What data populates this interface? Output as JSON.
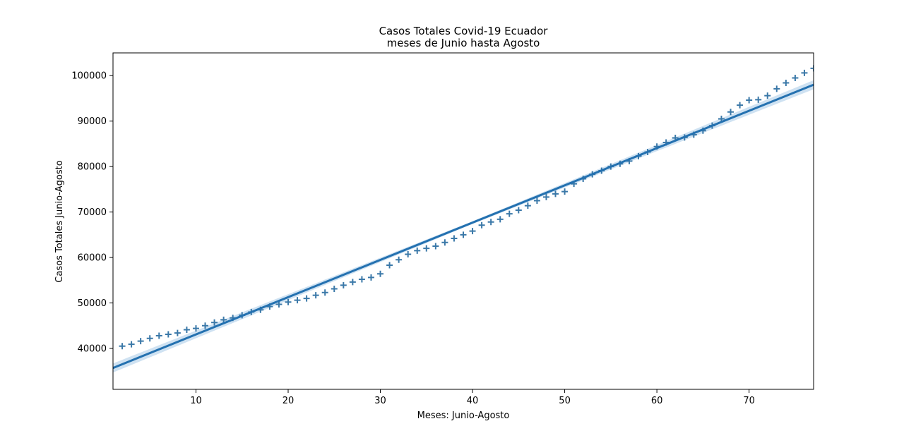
{
  "chart_data": {
    "type": "scatter",
    "title_line1": "Casos Totales Covid-19 Ecuador",
    "title_line2": "meses de Junio hasta Agosto",
    "xlabel": "Meses: Junio-Agosto",
    "ylabel": "Casos Totales Junio-Agosto",
    "xlim": [
      1,
      77
    ],
    "ylim": [
      31000,
      105000
    ],
    "xticks": [
      10,
      20,
      30,
      40,
      50,
      60,
      70
    ],
    "yticks": [
      40000,
      50000,
      60000,
      70000,
      80000,
      90000,
      100000
    ],
    "marker": "+",
    "grid": false,
    "colors": {
      "points": "#3a78a8",
      "line": "#2471b0",
      "band": "#a8cbe8"
    },
    "x": [
      2,
      3,
      4,
      5,
      6,
      7,
      8,
      9,
      10,
      11,
      12,
      13,
      14,
      15,
      16,
      17,
      18,
      19,
      20,
      21,
      22,
      23,
      24,
      25,
      26,
      27,
      28,
      29,
      30,
      31,
      32,
      33,
      34,
      35,
      36,
      37,
      38,
      39,
      40,
      41,
      42,
      43,
      44,
      45,
      46,
      47,
      48,
      49,
      50,
      51,
      52,
      53,
      54,
      55,
      56,
      57,
      58,
      59,
      60,
      61,
      62,
      63,
      64,
      65,
      66,
      67,
      68,
      69,
      70,
      71,
      72,
      73,
      74,
      75,
      76,
      77
    ],
    "y": [
      40500,
      40900,
      41600,
      42200,
      42800,
      43100,
      43400,
      44100,
      44400,
      45000,
      45700,
      46300,
      46700,
      47300,
      48000,
      48500,
      49200,
      49700,
      50200,
      50600,
      51000,
      51700,
      52300,
      53100,
      53900,
      54600,
      55200,
      55600,
      56400,
      58300,
      59500,
      60700,
      61500,
      62000,
      62500,
      63300,
      64200,
      65000,
      65800,
      67100,
      67800,
      68400,
      69600,
      70400,
      71400,
      72500,
      73300,
      74000,
      74500,
      76200,
      77300,
      78300,
      79100,
      80000,
      80600,
      81200,
      82300,
      83200,
      84400,
      85300,
      86300,
      86400,
      87000,
      87900,
      89000,
      90500,
      92000,
      93500,
      94600,
      94700,
      95600,
      97100,
      98400,
      99500,
      100600,
      101600
    ]
  },
  "regression": {
    "x0": 1,
    "y0": 35700,
    "x1": 77,
    "y1": 98000,
    "band_x": [
      1,
      40,
      77
    ],
    "band_half_width": [
      1000,
      300,
      1000
    ]
  }
}
